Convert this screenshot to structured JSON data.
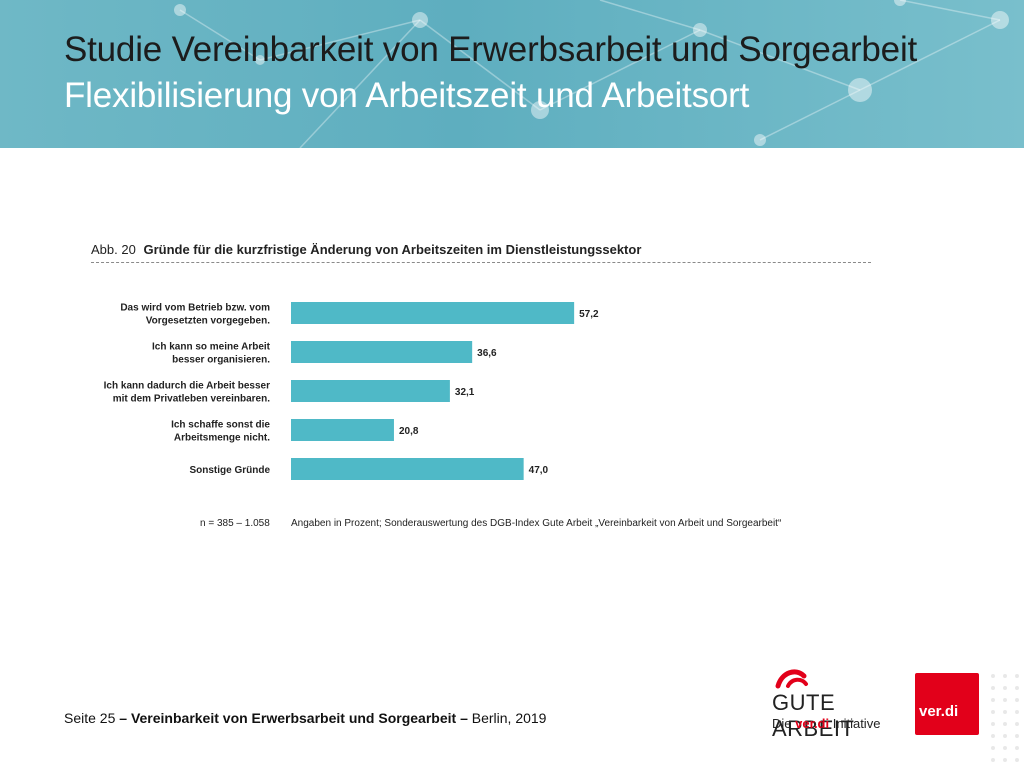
{
  "slide": {
    "title": "Studie Vereinbarkeit von Erwerbsarbeit und Sorgearbeit",
    "subtitle": "Flexibilisierung von Arbeitszeit und Arbeitsort"
  },
  "chart_data": {
    "type": "bar",
    "orientation": "horizontal",
    "figure_label": "Abb. 20",
    "title": "Gründe für die kurzfristige Änderung von Arbeitszeiten im Dienstleistungssektor",
    "categories": [
      [
        "Das wird vom Betrieb bzw. vom",
        "Vorgesetzten vorgegeben."
      ],
      [
        "Ich kann so meine Arbeit",
        "besser organisieren."
      ],
      [
        "Ich kann dadurch die Arbeit besser",
        "mit dem Privatleben vereinbaren."
      ],
      [
        "Ich schaffe sonst die",
        "Arbeitsmenge nicht."
      ],
      [
        "Sonstige Gründe"
      ]
    ],
    "values": [
      57.2,
      36.6,
      32.1,
      20.8,
      47.0
    ],
    "value_labels": [
      "57,2",
      "36,6",
      "32,1",
      "20,8",
      "47,0"
    ],
    "xlim": [
      0,
      100
    ],
    "bar_color": "#4fb9c7",
    "grid": false,
    "legend": false,
    "n_note": "n = 385 – 1.058",
    "source_note": "Angaben in Prozent; Sonderauswertung des DGB-Index Gute Arbeit „Vereinbarkeit von Arbeit und Sorgearbeit“"
  },
  "footer": {
    "page": "Seite 25",
    "dash1": "–",
    "topic": "Vereinbarkeit von Erwerbsarbeit und Sorgearbeit",
    "dash2": "–",
    "place_year": "Berlin, 2019"
  },
  "logos": {
    "gute_arbeit": "GUTE ARBEIT",
    "gute_arbeit_sub_prefix": "Die",
    "gute_arbeit_sub_brand": "ver.di",
    "gute_arbeit_sub_suffix": "Initiative",
    "verdi": "ver.di"
  },
  "colors": {
    "header": "#5eaebf",
    "subtitle_text": "#ffffff",
    "brand_red": "#e2001a"
  }
}
